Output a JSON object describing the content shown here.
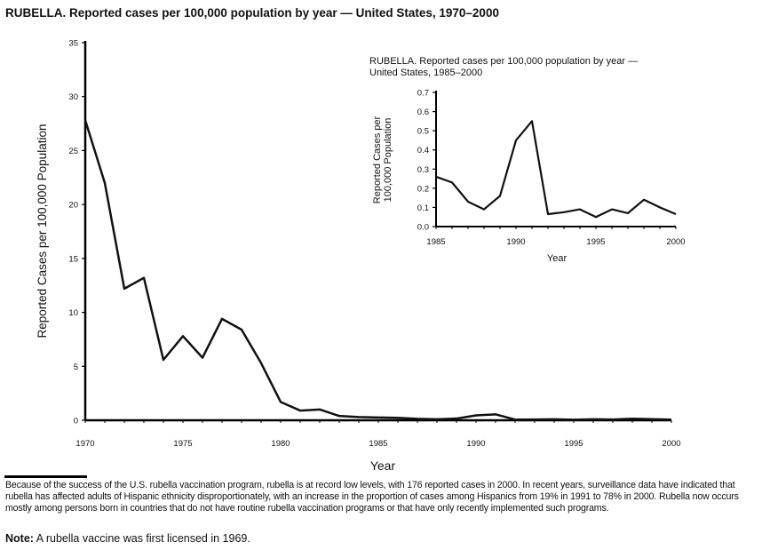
{
  "chart_data": [
    {
      "type": "line",
      "title": "RUBELLA.  Reported cases per 100,000 population by year — United States, 1970–2000",
      "xlabel": "Year",
      "ylabel": "Reported Cases per 100,000 Population",
      "xlim": [
        1970,
        2000
      ],
      "ylim": [
        0,
        35
      ],
      "xticks": [
        1970,
        1975,
        1980,
        1985,
        1990,
        1995,
        2000
      ],
      "yticks": [
        0,
        5,
        10,
        15,
        20,
        25,
        30,
        35
      ],
      "x": [
        1970,
        1971,
        1972,
        1973,
        1974,
        1975,
        1976,
        1977,
        1978,
        1979,
        1980,
        1981,
        1982,
        1983,
        1984,
        1985,
        1986,
        1987,
        1988,
        1989,
        1990,
        1991,
        1992,
        1993,
        1994,
        1995,
        1996,
        1997,
        1998,
        1999,
        2000
      ],
      "values": [
        27.8,
        22,
        12.2,
        13.2,
        5.6,
        7.8,
        5.8,
        9.4,
        8.4,
        5.3,
        1.7,
        0.9,
        1.0,
        0.4,
        0.3,
        0.26,
        0.23,
        0.13,
        0.09,
        0.16,
        0.45,
        0.55,
        0.065,
        0.075,
        0.09,
        0.05,
        0.09,
        0.07,
        0.14,
        0.1,
        0.065
      ],
      "grid": false
    },
    {
      "type": "line",
      "title_lines": [
        "RUBELLA. Reported cases per 100,000 population by year —",
        "United States, 1985–2000"
      ],
      "xlabel": "Year",
      "ylabel_lines": [
        "Reported Cases per",
        "100,000 Population"
      ],
      "xlim": [
        1985,
        2000
      ],
      "ylim": [
        0,
        0.7
      ],
      "xticks": [
        1985,
        1990,
        1995,
        2000
      ],
      "yticks": [
        "0.0",
        "0.1",
        "0.2",
        "0.3",
        "0.4",
        "0.5",
        "0.6",
        "0.7"
      ],
      "x": [
        1985,
        1986,
        1987,
        1988,
        1989,
        1990,
        1991,
        1992,
        1993,
        1994,
        1995,
        1996,
        1997,
        1998,
        1999,
        2000
      ],
      "values": [
        0.26,
        0.23,
        0.13,
        0.09,
        0.16,
        0.45,
        0.55,
        0.065,
        0.075,
        0.09,
        0.05,
        0.09,
        0.07,
        0.14,
        0.1,
        0.065
      ],
      "grid": false
    }
  ],
  "footnote": "Because of the success of the U.S. rubella vaccination program, rubella is at record low levels, with 176 reported cases in 2000. In recent years, surveillance data have indicated that rubella has affected adults of Hispanic ethnicity disproportionately, with an increase in the proportion of cases among Hispanics from 19% in 1991 to 78% in 2000. Rubella now occurs mostly among persons born in countries that do not have routine rubella vaccination programs or that have only recently implemented such programs.",
  "note": {
    "label": "Note:",
    "text": " A rubella vaccine was first licensed in 1969."
  }
}
